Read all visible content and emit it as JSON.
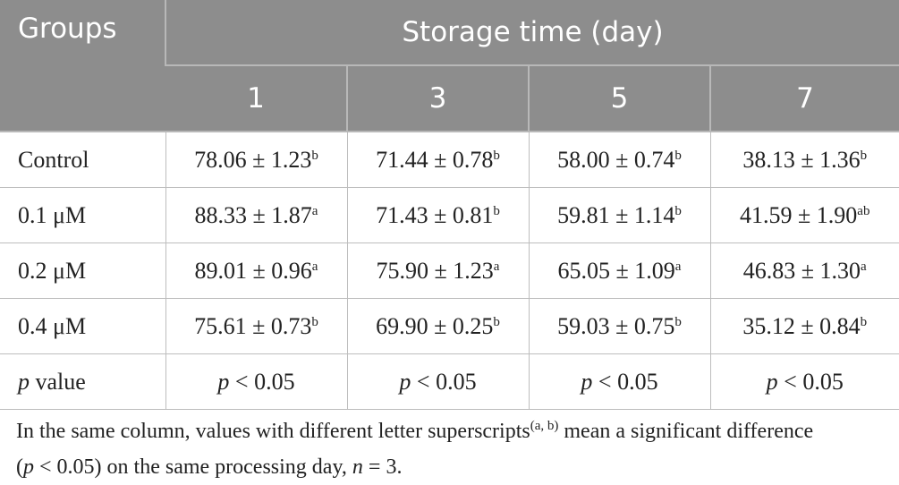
{
  "header": {
    "groups": "Groups",
    "storage_time": "Storage time (day)",
    "days": [
      "1",
      "3",
      "5",
      "7"
    ]
  },
  "rows": [
    {
      "group": "Control",
      "cells": [
        {
          "value": "78.06 ± 1.23",
          "sup": "b"
        },
        {
          "value": "71.44 ± 0.78",
          "sup": "b"
        },
        {
          "value": "58.00 ± 0.74",
          "sup": "b"
        },
        {
          "value": "38.13 ± 1.36",
          "sup": "b"
        }
      ]
    },
    {
      "group": "0.1 μM",
      "cells": [
        {
          "value": "88.33 ± 1.87",
          "sup": "a"
        },
        {
          "value": "71.43 ± 0.81",
          "sup": "b"
        },
        {
          "value": "59.81 ± 1.14",
          "sup": "b"
        },
        {
          "value": "41.59 ± 1.90",
          "sup": "ab"
        }
      ]
    },
    {
      "group": "0.2 μM",
      "cells": [
        {
          "value": "89.01 ± 0.96",
          "sup": "a"
        },
        {
          "value": "75.90 ± 1.23",
          "sup": "a"
        },
        {
          "value": "65.05 ± 1.09",
          "sup": "a"
        },
        {
          "value": "46.83 ± 1.30",
          "sup": "a"
        }
      ]
    },
    {
      "group": "0.4 μM",
      "cells": [
        {
          "value": "75.61 ± 0.73",
          "sup": "b"
        },
        {
          "value": "69.90 ± 0.25",
          "sup": "b"
        },
        {
          "value": "59.03 ± 0.75",
          "sup": "b"
        },
        {
          "value": "35.12 ± 0.84",
          "sup": "b"
        }
      ]
    }
  ],
  "p_value_row": {
    "label": {
      "italic": "p",
      "rest": " value"
    },
    "cells": [
      {
        "italic": "p",
        "rest": " < 0.05"
      },
      {
        "italic": "p",
        "rest": " < 0.05"
      },
      {
        "italic": "p",
        "rest": " < 0.05"
      },
      {
        "italic": "p",
        "rest": " < 0.05"
      }
    ]
  },
  "footnote": {
    "part1": "In the same column, values with different letter superscripts",
    "sup": "(a, b)",
    "part2": " mean a significant difference",
    "part3": "(",
    "p": "p",
    "part4": " < 0.05) on the same processing day, ",
    "n": "n",
    "part5": " = 3."
  }
}
